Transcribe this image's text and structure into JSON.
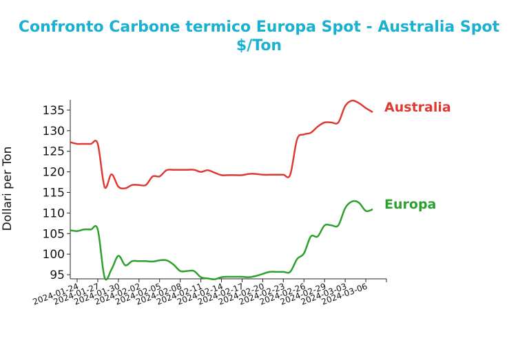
{
  "chart_data": {
    "type": "line",
    "title": "Confronto Carbone termico Europa Spot - Australia Spot",
    "subtitle": "$/Ton",
    "xlabel": "",
    "ylabel": "Dollari per Ton",
    "ylim": [
      94,
      137.5
    ],
    "yticks": [
      95,
      100,
      105,
      110,
      115,
      120,
      125,
      130,
      135
    ],
    "xlim": [
      "2024-01-23",
      "2024-03-09"
    ],
    "xticks": [
      "2024-01-24",
      "2024-01-27",
      "2024-01-30",
      "2024-02-02",
      "2024-02-05",
      "2024-02-08",
      "2024-02-11",
      "2024-02-14",
      "2024-02-17",
      "2024-02-20",
      "2024-02-23",
      "2024-02-26",
      "2024-02-29",
      "2024-03-03",
      "2024-03-06"
    ],
    "legend": "end-of-line labels",
    "grid": false,
    "series": [
      {
        "name": "Australia",
        "color": "#dd3a34",
        "points": [
          [
            "2024-01-23",
            127.2
          ],
          [
            "2024-01-24",
            126.8
          ],
          [
            "2024-01-25",
            126.8
          ],
          [
            "2024-01-26",
            126.8
          ],
          [
            "2024-01-27",
            126.8
          ],
          [
            "2024-01-28",
            116.3
          ],
          [
            "2024-01-29",
            119.4
          ],
          [
            "2024-01-30",
            116.4
          ],
          [
            "2024-01-31",
            116.0
          ],
          [
            "2024-02-01",
            116.8
          ],
          [
            "2024-02-02",
            116.8
          ],
          [
            "2024-02-03",
            116.8
          ],
          [
            "2024-02-04",
            118.9
          ],
          [
            "2024-02-05",
            118.9
          ],
          [
            "2024-02-06",
            120.4
          ],
          [
            "2024-02-07",
            120.5
          ],
          [
            "2024-02-08",
            120.5
          ],
          [
            "2024-02-09",
            120.5
          ],
          [
            "2024-02-10",
            120.5
          ],
          [
            "2024-02-11",
            120.0
          ],
          [
            "2024-02-12",
            120.4
          ],
          [
            "2024-02-13",
            119.8
          ],
          [
            "2024-02-14",
            119.2
          ],
          [
            "2024-02-15",
            119.2
          ],
          [
            "2024-02-16",
            119.2
          ],
          [
            "2024-02-17",
            119.2
          ],
          [
            "2024-02-18",
            119.5
          ],
          [
            "2024-02-19",
            119.5
          ],
          [
            "2024-02-20",
            119.3
          ],
          [
            "2024-02-21",
            119.3
          ],
          [
            "2024-02-22",
            119.3
          ],
          [
            "2024-02-23",
            119.3
          ],
          [
            "2024-02-24",
            119.3
          ],
          [
            "2024-02-25",
            127.9
          ],
          [
            "2024-02-26",
            129.1
          ],
          [
            "2024-02-27",
            129.5
          ],
          [
            "2024-02-28",
            131.0
          ],
          [
            "2024-02-29",
            132.0
          ],
          [
            "2024-03-01",
            132.0
          ],
          [
            "2024-03-02",
            132.0
          ],
          [
            "2024-03-03",
            136.0
          ],
          [
            "2024-03-04",
            137.3
          ],
          [
            "2024-03-05",
            136.7
          ],
          [
            "2024-03-06",
            135.5
          ],
          [
            "2024-03-07",
            134.5
          ]
        ],
        "end_label": "Australia"
      },
      {
        "name": "Europa",
        "color": "#2ca02c",
        "points": [
          [
            "2024-01-23",
            105.8
          ],
          [
            "2024-01-24",
            105.6
          ],
          [
            "2024-01-25",
            106.0
          ],
          [
            "2024-01-26",
            106.0
          ],
          [
            "2024-01-27",
            106.0
          ],
          [
            "2024-01-28",
            94.3
          ],
          [
            "2024-01-29",
            96.3
          ],
          [
            "2024-01-30",
            99.6
          ],
          [
            "2024-01-31",
            97.3
          ],
          [
            "2024-02-01",
            98.3
          ],
          [
            "2024-02-02",
            98.3
          ],
          [
            "2024-02-03",
            98.3
          ],
          [
            "2024-02-04",
            98.2
          ],
          [
            "2024-02-05",
            98.5
          ],
          [
            "2024-02-06",
            98.5
          ],
          [
            "2024-02-07",
            97.5
          ],
          [
            "2024-02-08",
            95.9
          ],
          [
            "2024-02-09",
            95.9
          ],
          [
            "2024-02-10",
            95.9
          ],
          [
            "2024-02-11",
            94.4
          ],
          [
            "2024-02-12",
            94.1
          ],
          [
            "2024-02-13",
            93.9
          ],
          [
            "2024-02-14",
            94.4
          ],
          [
            "2024-02-15",
            94.5
          ],
          [
            "2024-02-16",
            94.5
          ],
          [
            "2024-02-17",
            94.5
          ],
          [
            "2024-02-18",
            94.4
          ],
          [
            "2024-02-19",
            94.7
          ],
          [
            "2024-02-20",
            95.2
          ],
          [
            "2024-02-21",
            95.7
          ],
          [
            "2024-02-22",
            95.7
          ],
          [
            "2024-02-23",
            95.7
          ],
          [
            "2024-02-24",
            95.7
          ],
          [
            "2024-02-25",
            98.8
          ],
          [
            "2024-02-26",
            100.2
          ],
          [
            "2024-02-27",
            104.3
          ],
          [
            "2024-02-28",
            104.3
          ],
          [
            "2024-02-29",
            107.0
          ],
          [
            "2024-03-01",
            107.0
          ],
          [
            "2024-03-02",
            107.0
          ],
          [
            "2024-03-03",
            111.2
          ],
          [
            "2024-03-04",
            112.8
          ],
          [
            "2024-03-05",
            112.5
          ],
          [
            "2024-03-06",
            110.5
          ],
          [
            "2024-03-07",
            110.9
          ]
        ],
        "end_label": "Europa"
      }
    ]
  }
}
